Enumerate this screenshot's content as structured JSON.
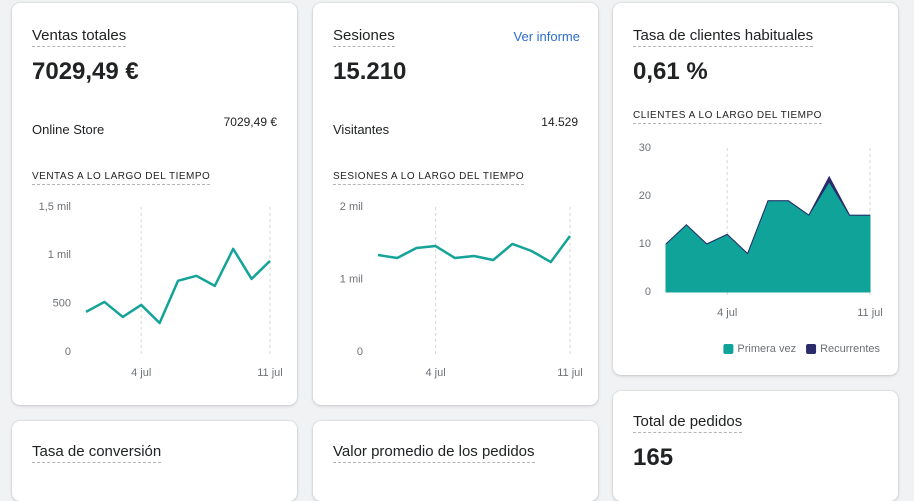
{
  "cards": [
    {
      "title": "Ventas totales",
      "value": "7029,49 €",
      "breakdown": {
        "label": "Online Store",
        "value": "7029,49 €"
      },
      "chart_data": {
        "type": "line",
        "title": "VENTAS A LO LARGO DEL TIEMPO",
        "categories": [
          null,
          null,
          null,
          "4 jul",
          null,
          null,
          null,
          null,
          null,
          null,
          "11 jul"
        ],
        "values": [
          415,
          518,
          363,
          487,
          300,
          736,
          788,
          684,
          1067,
          756,
          943
        ],
        "color": "#13a398",
        "ylim": [
          0,
          1500
        ],
        "yticks": [
          0,
          500,
          {
            "value": 1000,
            "label": "1 mil"
          },
          {
            "value": 1500,
            "label": "1,5 mil"
          }
        ],
        "grid": "x"
      }
    },
    {
      "title": "Sesiones",
      "link": "Ver informe",
      "value": "15.210",
      "breakdown": {
        "label": "Visitantes",
        "value": "14.529"
      },
      "chart_data": {
        "type": "line",
        "title": "SESIONES A LO LARGO DEL TIEMPO",
        "categories": [
          null,
          null,
          null,
          "4 jul",
          null,
          null,
          null,
          null,
          null,
          null,
          "11 jul"
        ],
        "values": [
          1338,
          1297,
          1434,
          1462,
          1297,
          1324,
          1269,
          1490,
          1393,
          1241,
          1600
        ],
        "color": "#13a398",
        "ylim": [
          0,
          2000
        ],
        "yticks": [
          0,
          {
            "value": 1000,
            "label": "1 mil"
          },
          {
            "value": 2000,
            "label": "2 mil"
          }
        ],
        "grid": "x"
      }
    },
    {
      "title": "Tasa de clientes habituales",
      "value": "0,61 %",
      "chart_data": {
        "type": "area",
        "stacked": true,
        "title": "CLIENTES A LO LARGO DEL TIEMPO",
        "categories": [
          null,
          null,
          null,
          "4 jul",
          null,
          null,
          null,
          null,
          null,
          null,
          "11 jul"
        ],
        "series": [
          {
            "name": "Primera vez",
            "color": "#0fa399",
            "values": [
              10,
              14,
              10,
              12,
              8,
              19,
              19,
              16,
              23,
              16,
              16
            ]
          },
          {
            "name": "Recurrentes",
            "color": "#2b2a6b",
            "values": [
              0,
              0,
              0,
              0,
              0,
              0,
              0,
              0,
              1,
              0,
              0
            ]
          }
        ],
        "ylim": [
          0,
          30
        ],
        "yticks": [
          0,
          10,
          20,
          30
        ],
        "grid": "x",
        "legend": "bottom-right"
      }
    },
    {
      "title": "Total de pedidos",
      "value": "165"
    },
    {
      "title": "Tasa de conversión"
    },
    {
      "title": "Valor promedio de los pedidos"
    }
  ]
}
